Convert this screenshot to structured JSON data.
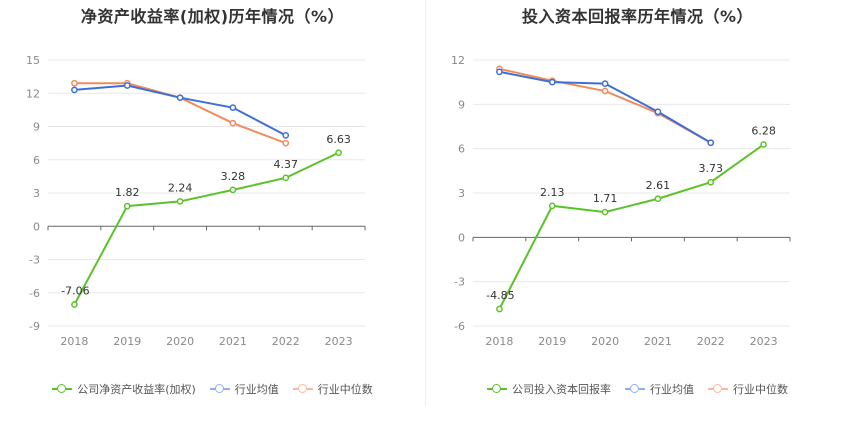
{
  "colors": {
    "company": "#5cc22a",
    "avg": "#3f6fd6",
    "median": "#f08c5c",
    "avg_legend": "#8fb0ec",
    "median_legend": "#f7bba0"
  },
  "chart_data": [
    {
      "type": "line",
      "title": "净资产收益率(加权)历年情况（%）",
      "x": [
        "2018",
        "2019",
        "2020",
        "2021",
        "2022",
        "2023"
      ],
      "ylim": [
        -9,
        15
      ],
      "yticks": [
        -9,
        -6,
        -3,
        0,
        3,
        6,
        9,
        12,
        15
      ],
      "grid": true,
      "legend_position": "bottom",
      "series": [
        {
          "name": "公司净资产收益率(加权)",
          "values": [
            -7.06,
            1.82,
            2.24,
            3.28,
            4.37,
            6.63
          ],
          "labels": true
        },
        {
          "name": "行业均值",
          "values": [
            12.3,
            12.7,
            11.6,
            10.7,
            8.2,
            null
          ]
        },
        {
          "name": "行业中位数",
          "values": [
            12.9,
            12.9,
            11.6,
            9.3,
            7.5,
            null
          ]
        }
      ]
    },
    {
      "type": "line",
      "title": "投入资本回报率历年情况（%）",
      "x": [
        "2018",
        "2019",
        "2020",
        "2021",
        "2022",
        "2023"
      ],
      "ylim": [
        -6,
        12
      ],
      "yticks": [
        -6,
        -3,
        0,
        3,
        6,
        9,
        12
      ],
      "grid": true,
      "legend_position": "bottom",
      "series": [
        {
          "name": "公司投入资本回报率",
          "values": [
            -4.85,
            2.13,
            1.71,
            2.61,
            3.73,
            6.28
          ],
          "labels": true
        },
        {
          "name": "行业均值",
          "values": [
            11.2,
            10.5,
            10.4,
            8.5,
            6.4,
            null
          ]
        },
        {
          "name": "行业中位数",
          "values": [
            11.4,
            10.6,
            9.9,
            8.4,
            6.4,
            null
          ]
        }
      ]
    }
  ]
}
